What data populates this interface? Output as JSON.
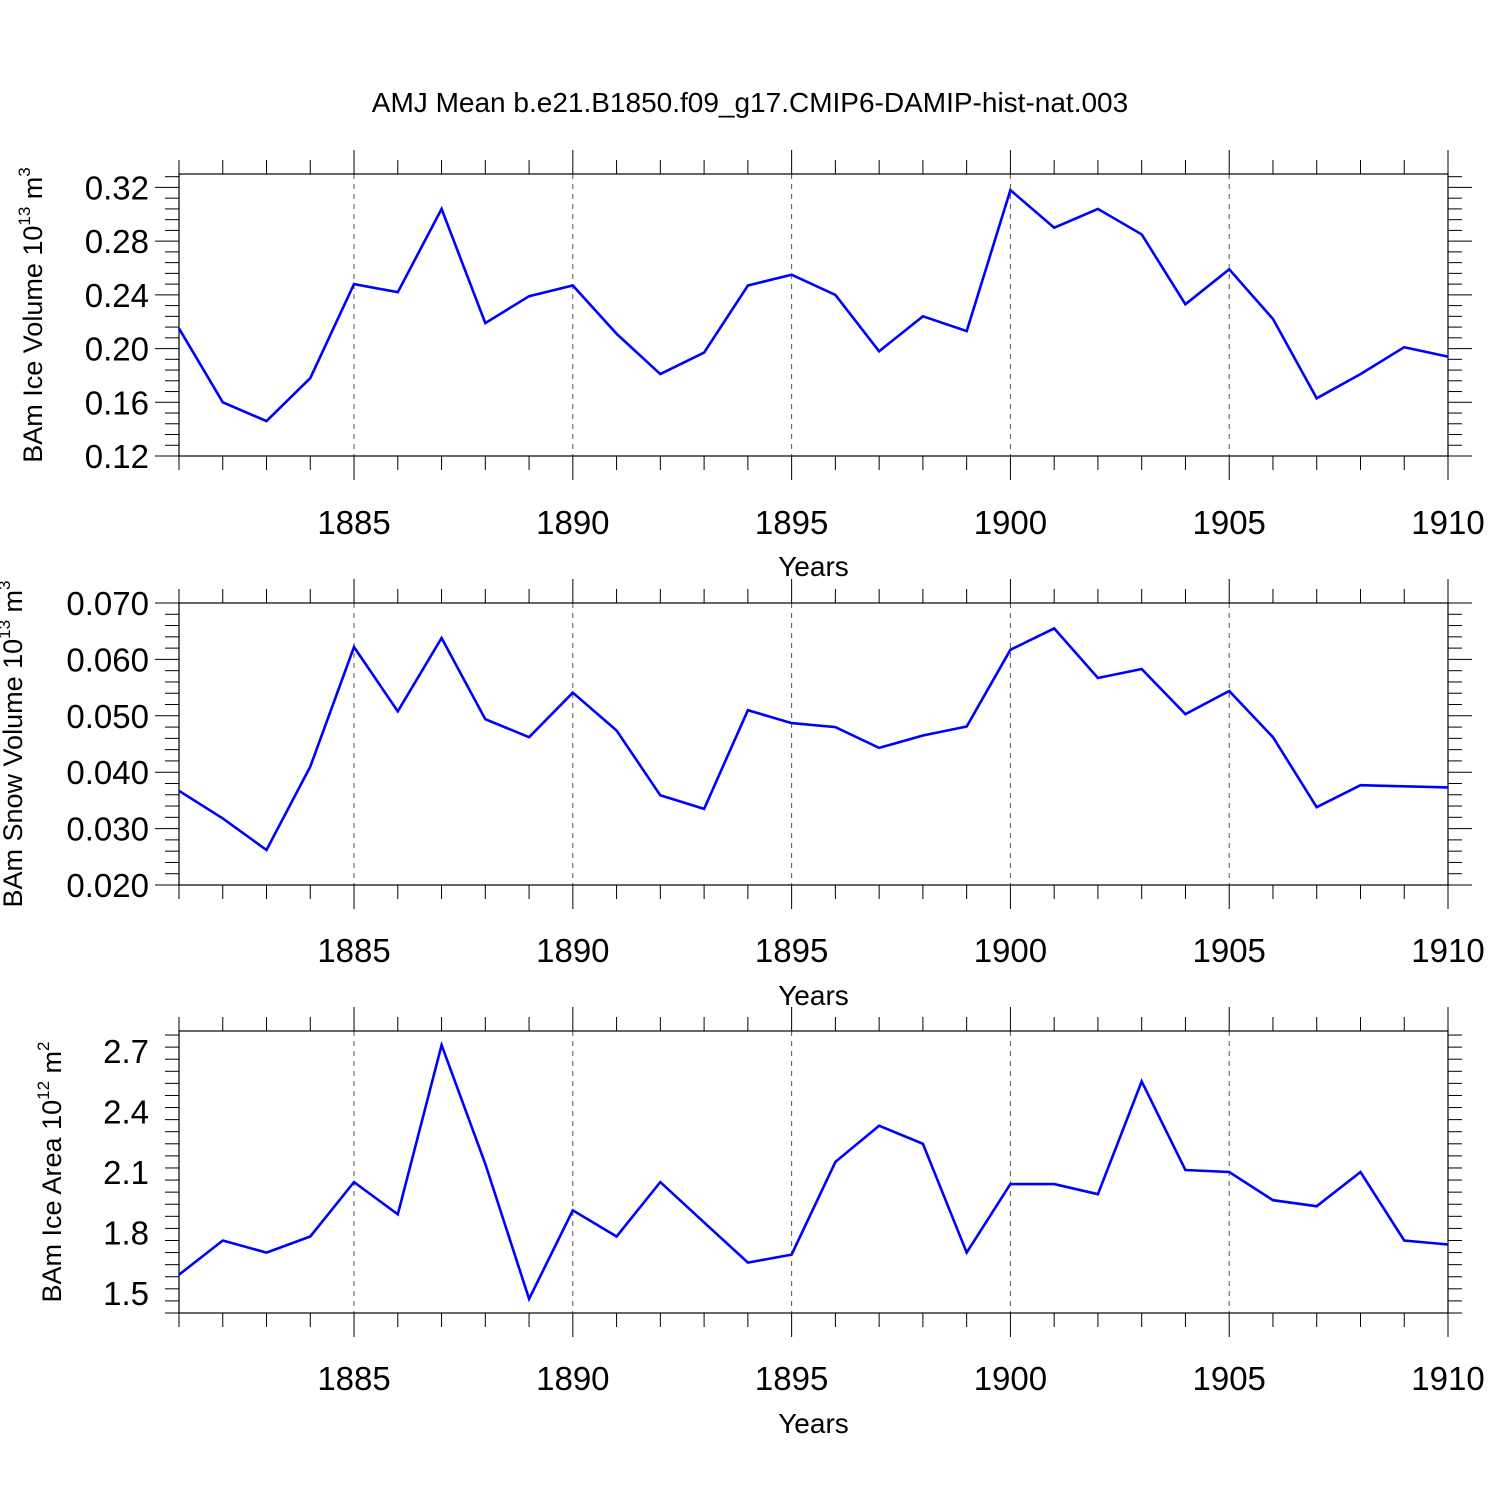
{
  "title": "AMJ Mean b.e21.B1850.f09_g17.CMIP6-DAMIP-hist-nat.003",
  "colors": {
    "line": "#0000ff",
    "axis": "#000000",
    "grid": "#555555"
  },
  "chart_data": [
    {
      "type": "line",
      "xlabel": "Years",
      "ylabel": {
        "text": "BAm Ice Volume 10",
        "exp": "13",
        "unit": " m",
        "unit_exp": "3"
      },
      "xlim": [
        1881,
        1910
      ],
      "ylim": [
        0.12,
        0.33
      ],
      "xticks": [
        1885,
        1890,
        1895,
        1900,
        1905,
        1910
      ],
      "yticks": [
        0.12,
        0.16,
        0.2,
        0.24,
        0.28,
        0.32
      ],
      "ytick_labels": [
        "0.12",
        "0.16",
        "0.20",
        "0.24",
        "0.28",
        "0.32"
      ],
      "grid": "vertical dashed at major x ticks",
      "x": [
        1881,
        1882,
        1883,
        1884,
        1885,
        1886,
        1887,
        1888,
        1889,
        1890,
        1891,
        1892,
        1893,
        1894,
        1895,
        1896,
        1897,
        1898,
        1899,
        1900,
        1901,
        1902,
        1903,
        1904,
        1905,
        1906,
        1907,
        1908,
        1909,
        1910
      ],
      "values": [
        0.215,
        0.16,
        0.146,
        0.178,
        0.248,
        0.242,
        0.304,
        0.219,
        0.239,
        0.247,
        0.211,
        0.181,
        0.197,
        0.247,
        0.255,
        0.24,
        0.198,
        0.224,
        0.213,
        0.318,
        0.29,
        0.304,
        0.285,
        0.233,
        0.259,
        0.222,
        0.163,
        0.181,
        0.201,
        0.194
      ]
    },
    {
      "type": "line",
      "xlabel": "Years",
      "ylabel": {
        "text": "BAm Snow Volume 10",
        "exp": "13",
        "unit": " m",
        "unit_exp": "3"
      },
      "xlim": [
        1881,
        1910
      ],
      "ylim": [
        0.02,
        0.07
      ],
      "xticks": [
        1885,
        1890,
        1895,
        1900,
        1905,
        1910
      ],
      "yticks": [
        0.02,
        0.03,
        0.04,
        0.05,
        0.06,
        0.07
      ],
      "ytick_labels": [
        "0.020",
        "0.030",
        "0.040",
        "0.050",
        "0.060",
        "0.070"
      ],
      "grid": "vertical dashed at major x ticks",
      "x": [
        1881,
        1882,
        1883,
        1884,
        1885,
        1886,
        1887,
        1888,
        1889,
        1890,
        1891,
        1892,
        1893,
        1894,
        1895,
        1896,
        1897,
        1898,
        1899,
        1900,
        1901,
        1902,
        1903,
        1904,
        1905,
        1906,
        1907,
        1908,
        1909,
        1910
      ],
      "values": [
        0.0367,
        0.0318,
        0.0262,
        0.041,
        0.0622,
        0.0508,
        0.0638,
        0.0494,
        0.0462,
        0.0541,
        0.0474,
        0.0359,
        0.0335,
        0.051,
        0.0487,
        0.048,
        0.0443,
        0.0465,
        0.0481,
        0.0617,
        0.0655,
        0.0567,
        0.0583,
        0.0503,
        0.0544,
        0.0462,
        0.0338,
        0.0377,
        0.0375,
        0.0373
      ]
    },
    {
      "type": "line",
      "xlabel": "Years",
      "ylabel": {
        "text": "BAm Ice Area 10",
        "exp": "12",
        "unit": " m",
        "unit_exp": "2"
      },
      "xlim": [
        1881,
        1910
      ],
      "ylim": [
        1.4,
        2.8
      ],
      "xticks": [
        1885,
        1890,
        1895,
        1900,
        1905,
        1910
      ],
      "yticks": [
        1.5,
        1.8,
        2.1,
        2.4,
        2.7
      ],
      "ytick_labels": [
        "1.5",
        "1.8",
        "2.1",
        "2.4",
        "2.7"
      ],
      "grid": "vertical dashed at major x ticks",
      "x": [
        1881,
        1882,
        1883,
        1884,
        1885,
        1886,
        1887,
        1888,
        1889,
        1890,
        1891,
        1892,
        1893,
        1894,
        1895,
        1896,
        1897,
        1898,
        1899,
        1900,
        1901,
        1902,
        1903,
        1904,
        1905,
        1906,
        1907,
        1908,
        1909,
        1910
      ],
      "values": [
        1.59,
        1.76,
        1.7,
        1.78,
        2.05,
        1.89,
        2.73,
        2.14,
        1.47,
        1.91,
        1.78,
        2.05,
        1.85,
        1.65,
        1.69,
        2.15,
        2.33,
        2.24,
        1.7,
        2.04,
        2.04,
        1.99,
        2.55,
        2.11,
        2.1,
        1.96,
        1.93,
        2.1,
        1.76,
        1.74
      ]
    }
  ]
}
